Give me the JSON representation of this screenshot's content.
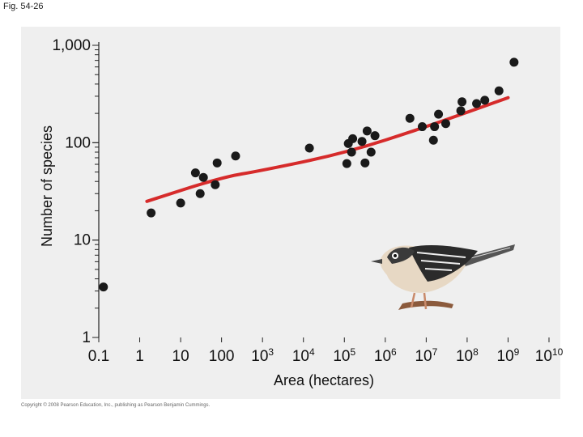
{
  "figure_label": "Fig. 54-26",
  "copyright": "Copyright © 2008 Pearson Education, Inc., publishing as Pearson Benjamin Cummings.",
  "chart_data": {
    "type": "scatter",
    "title": "",
    "xlabel": "Area (hectares)",
    "ylabel": "Number of species",
    "x_scale": "log",
    "y_scale": "log",
    "xlim": [
      0.1,
      10000000000
    ],
    "ylim": [
      1,
      1000
    ],
    "x_tick_labels": [
      {
        "value": 0.1,
        "base": "0.1",
        "exp": ""
      },
      {
        "value": 1,
        "base": "1",
        "exp": ""
      },
      {
        "value": 10,
        "base": "10",
        "exp": ""
      },
      {
        "value": 100,
        "base": "100",
        "exp": ""
      },
      {
        "value": 1000,
        "base": "10",
        "exp": "3"
      },
      {
        "value": 10000,
        "base": "10",
        "exp": "4"
      },
      {
        "value": 100000,
        "base": "10",
        "exp": "5"
      },
      {
        "value": 1000000,
        "base": "10",
        "exp": "6"
      },
      {
        "value": 10000000,
        "base": "10",
        "exp": "7"
      },
      {
        "value": 100000000,
        "base": "10",
        "exp": "8"
      },
      {
        "value": 1000000000,
        "base": "10",
        "exp": "9"
      },
      {
        "value": 10000000000,
        "base": "10",
        "exp": "10"
      }
    ],
    "y_tick_labels": [
      {
        "value": 1,
        "label": "1"
      },
      {
        "value": 10,
        "label": "10"
      },
      {
        "value": 100,
        "label": "100"
      },
      {
        "value": 1000,
        "label": "1,000"
      }
    ],
    "colors": {
      "points": "#1a1a1a",
      "trend": "#d62b2b",
      "panel": "#efefef"
    },
    "points": [
      {
        "x": 0.13,
        "y": 3.3
      },
      {
        "x": 1.9,
        "y": 19
      },
      {
        "x": 10,
        "y": 24
      },
      {
        "x": 23,
        "y": 49
      },
      {
        "x": 30,
        "y": 30
      },
      {
        "x": 36,
        "y": 44
      },
      {
        "x": 70,
        "y": 37
      },
      {
        "x": 78,
        "y": 62
      },
      {
        "x": 220,
        "y": 73
      },
      {
        "x": 14000,
        "y": 88
      },
      {
        "x": 115000,
        "y": 61
      },
      {
        "x": 125000,
        "y": 98
      },
      {
        "x": 150000,
        "y": 80
      },
      {
        "x": 160000,
        "y": 110
      },
      {
        "x": 270000,
        "y": 103
      },
      {
        "x": 320000,
        "y": 62
      },
      {
        "x": 360000,
        "y": 132
      },
      {
        "x": 450000,
        "y": 80
      },
      {
        "x": 560000,
        "y": 118
      },
      {
        "x": 4000000,
        "y": 178
      },
      {
        "x": 8000000,
        "y": 146
      },
      {
        "x": 15000000,
        "y": 106
      },
      {
        "x": 16000000,
        "y": 146
      },
      {
        "x": 20000000,
        "y": 196
      },
      {
        "x": 30000000,
        "y": 157
      },
      {
        "x": 70000000,
        "y": 213
      },
      {
        "x": 75000000,
        "y": 263
      },
      {
        "x": 170000000,
        "y": 252
      },
      {
        "x": 270000000,
        "y": 273
      },
      {
        "x": 600000000,
        "y": 341
      },
      {
        "x": 1400000000,
        "y": 670
      }
    ],
    "trend_line": [
      {
        "x": 1.5,
        "y": 25
      },
      {
        "x": 100,
        "y": 44
      },
      {
        "x": 1000,
        "y": 52
      },
      {
        "x": 100000,
        "y": 78
      },
      {
        "x": 10000000,
        "y": 145
      },
      {
        "x": 1000000000,
        "y": 290
      }
    ]
  }
}
